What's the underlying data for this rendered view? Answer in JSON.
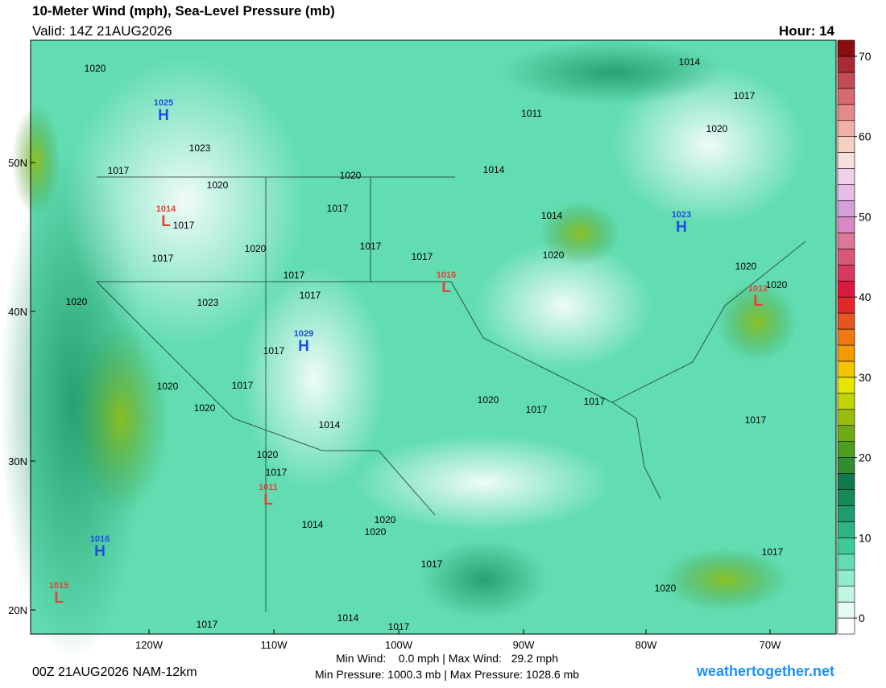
{
  "header": {
    "title": "10-Meter Wind (mph), Sea-Level Pressure (mb)",
    "valid": "Valid: 14Z 21AUG2026",
    "hour": "Hour: 14"
  },
  "map": {
    "lat_labels": [
      "50N",
      "40N",
      "30N",
      "20N"
    ],
    "lon_labels": [
      "120W",
      "110W",
      "100W",
      "90W",
      "80W",
      "70W"
    ],
    "isobar_labels": [
      "1020",
      "1023",
      "1017",
      "1020",
      "1020",
      "1014",
      "1011",
      "1014",
      "1017",
      "1020",
      "1017",
      "1017",
      "1014",
      "1017",
      "1020",
      "1017",
      "1017",
      "1017",
      "1020",
      "1020",
      "1017",
      "1023",
      "1020",
      "1017",
      "1020",
      "1017",
      "1020",
      "1014",
      "1020",
      "1017",
      "1017",
      "1017",
      "1020",
      "1017",
      "1014",
      "1020",
      "1020",
      "1017",
      "1017",
      "1020",
      "1017",
      "1014",
      "1017",
      "1020"
    ],
    "centers": [
      {
        "value": "1025",
        "kind": "H"
      },
      {
        "value": "1014",
        "kind": "L"
      },
      {
        "value": "1023",
        "kind": "H"
      },
      {
        "value": "1016",
        "kind": "L"
      },
      {
        "value": "1012",
        "kind": "L"
      },
      {
        "value": "1029",
        "kind": "H"
      },
      {
        "value": "1011",
        "kind": "L"
      },
      {
        "value": "1016",
        "kind": "H"
      },
      {
        "value": "1015",
        "kind": "L"
      }
    ]
  },
  "colorbar": {
    "lim": [
      -2,
      72
    ],
    "ticks": [
      0,
      10,
      20,
      30,
      40,
      50,
      60,
      70
    ],
    "step": 2,
    "colors": [
      "#ffffff",
      "#e6fbf2",
      "#c0f5e0",
      "#90eccb",
      "#62ddb2",
      "#3fcb98",
      "#2db483",
      "#1f9c6c",
      "#168a5a",
      "#0f7a4b",
      "#2f8f2e",
      "#4e9d1f",
      "#6fab12",
      "#96bd0c",
      "#c2d308",
      "#e6e600",
      "#f5c400",
      "#f29a00",
      "#ee7a10",
      "#e65520",
      "#e02a2a",
      "#d81b3c",
      "#d63a5c",
      "#d9587a",
      "#dd7898",
      "#d98ac4",
      "#d5a0dc",
      "#e6bde8",
      "#f0d0ea",
      "#f6e0e0",
      "#f5cfc0",
      "#f0b0a8",
      "#e58a8a",
      "#d66a70",
      "#c44c56",
      "#a82a35",
      "#8a0c10"
    ]
  },
  "footer": {
    "run": "00Z 21AUG2026 NAM-12km",
    "wind": "Min Wind:    0.0 mph | Max Wind:   29.2 mph",
    "pressure": "Min Pressure: 1000.3 mb | Max Pressure: 1028.6 mb",
    "site": "weathertogether.net"
  }
}
